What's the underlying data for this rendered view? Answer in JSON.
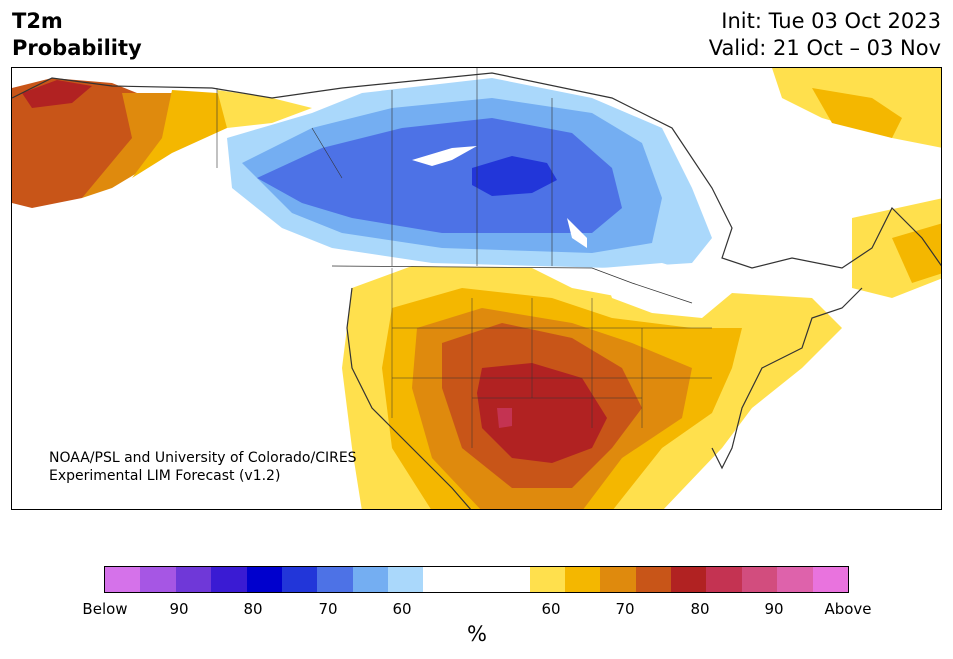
{
  "title": {
    "line1": "T2m",
    "line2": "Probability"
  },
  "dates": {
    "init": "Init: Tue 03 Oct 2023",
    "valid": "Valid: 21 Oct – 03 Nov"
  },
  "credit": {
    "line1": "NOAA/PSL and University of Colorado/CIRES",
    "line2": "Experimental LIM Forecast (v1.2)"
  },
  "colorbar": {
    "unit": "%",
    "ticks": [
      "Below",
      "90",
      "80",
      "70",
      "60",
      "60",
      "70",
      "80",
      "90",
      "Above"
    ],
    "colors": {
      "below": [
        "#d572ea",
        "#a656e4",
        "#6f38d8",
        "#3a1bd3",
        "#0000cd",
        "#2236d9",
        "#4d72e6",
        "#74aef2",
        "#aad8fb"
      ],
      "neutral": "#ffffff",
      "above": [
        "#ffe04d",
        "#f4b700",
        "#df8a0d",
        "#c85518",
        "#b12222",
        "#c43352",
        "#d24d7e",
        "#de62ab",
        "#e973de"
      ]
    }
  }
}
